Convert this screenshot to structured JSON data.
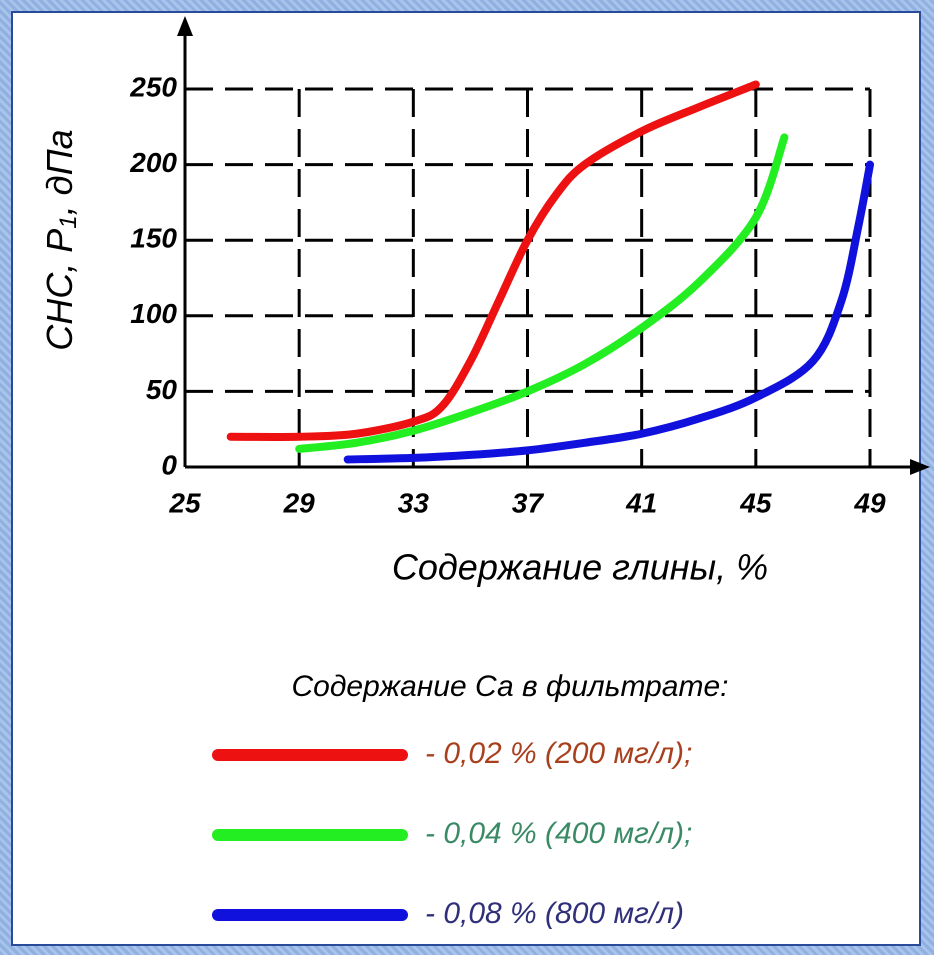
{
  "chart_data": {
    "type": "line",
    "ylabel": {
      "main": "СНС, P",
      "sub": "1",
      "unit": ", дПа"
    },
    "xlabel": "Содержание глины, %",
    "legend_title": "Содержание Са в фильтрате:",
    "xlim": [
      25,
      49
    ],
    "xticks": [
      25,
      29,
      33,
      37,
      41,
      45,
      49
    ],
    "ylim": [
      0,
      250
    ],
    "yticks": [
      0,
      50,
      100,
      150,
      200,
      250
    ],
    "grid": true,
    "series": [
      {
        "name": "- 0,02 % (200 мг/л);",
        "color": "#ee1111",
        "legend_text_color": "#a8401e",
        "x": [
          26.6,
          29,
          31,
          33,
          34,
          35,
          36,
          37,
          38,
          39,
          41,
          43,
          45
        ],
        "values": [
          20,
          20,
          22,
          30,
          40,
          70,
          110,
          150,
          180,
          200,
          222,
          238,
          253
        ]
      },
      {
        "name": "- 0,04 % (400 мг/л);",
        "color": "#22ee22",
        "legend_text_color": "#3a8a66",
        "x": [
          29,
          31,
          33,
          35,
          37,
          39,
          41,
          43,
          45,
          46
        ],
        "values": [
          12,
          16,
          24,
          36,
          50,
          68,
          92,
          122,
          165,
          218
        ]
      },
      {
        "name": "- 0,08 % (800 мг/л)",
        "color": "#1111dd",
        "legend_text_color": "#30307a",
        "x": [
          30.7,
          33,
          35,
          37,
          39,
          41,
          43,
          45,
          47,
          48,
          48.6,
          49
        ],
        "values": [
          5,
          6,
          8,
          11,
          16,
          22,
          32,
          46,
          70,
          110,
          160,
          200
        ]
      }
    ]
  }
}
